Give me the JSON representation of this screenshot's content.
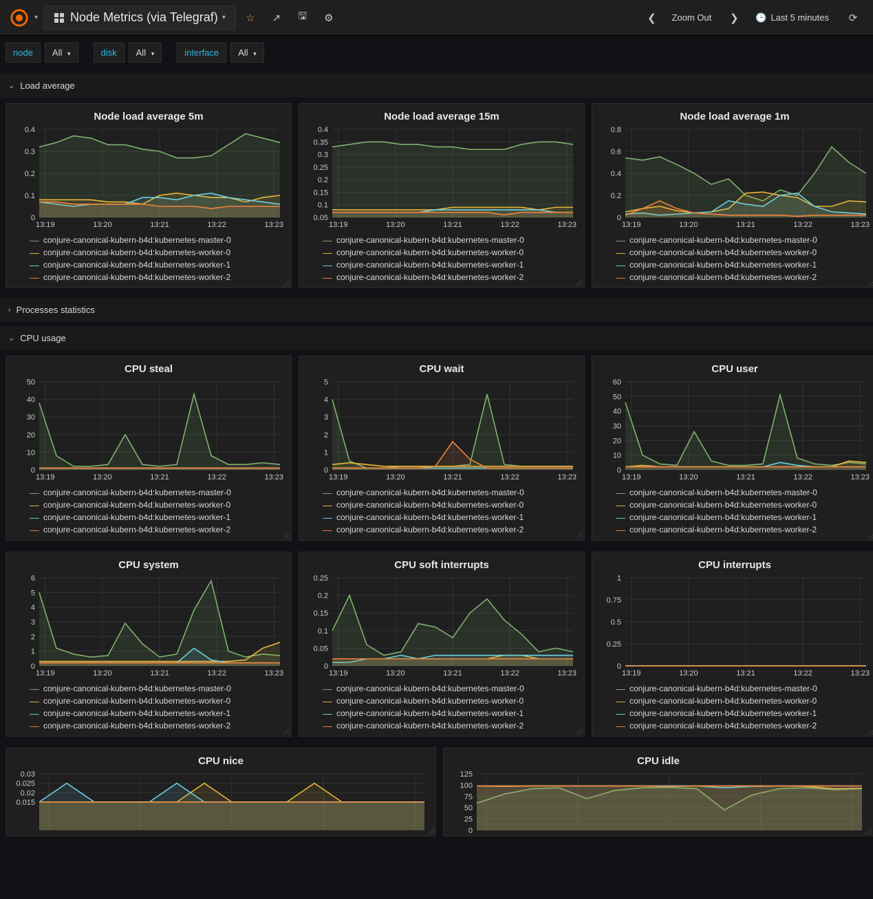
{
  "header": {
    "title": "Node Metrics (via Telegraf)",
    "zoom_label": "Zoom Out",
    "time_range": "Last 5 minutes"
  },
  "filters": [
    {
      "label": "node",
      "blue": true
    },
    {
      "label": "All",
      "caret": true
    },
    {
      "label": "disk",
      "blue": true,
      "gap_before": true
    },
    {
      "label": "All",
      "caret": true
    },
    {
      "label": "interface",
      "blue": true,
      "gap_before": true
    },
    {
      "label": "All",
      "caret": true
    }
  ],
  "colors": {
    "master0": "#7eb26d",
    "worker0": "#eab839",
    "worker1": "#6ed0e0",
    "worker2": "#ef843c",
    "grid": "#333333",
    "text": "#c8c8c8",
    "bg": "#1f1f20"
  },
  "legend_labels": [
    {
      "key": "master0",
      "text": "conjure-canonical-kubern-b4d:kubernetes-master-0"
    },
    {
      "key": "worker0",
      "text": "conjure-canonical-kubern-b4d:kubernetes-worker-0"
    },
    {
      "key": "worker1",
      "text": "conjure-canonical-kubern-b4d:kubernetes-worker-1"
    },
    {
      "key": "worker2",
      "text": "conjure-canonical-kubern-b4d:kubernetes-worker-2"
    }
  ],
  "x_ticks": [
    "13:19",
    "13:20",
    "13:21",
    "13:22",
    "13:23"
  ],
  "sections": [
    {
      "id": "load",
      "title": "Load average",
      "open": true
    },
    {
      "id": "proc",
      "title": "Processes statistics",
      "open": false
    },
    {
      "id": "cpu",
      "title": "CPU usage",
      "open": true
    }
  ],
  "panels": {
    "load5m": {
      "title": "Node load average 5m",
      "ylim": [
        0,
        0.4
      ],
      "yticks": [
        0,
        0.1,
        0.2,
        0.3,
        0.4
      ],
      "fill": true,
      "series": {
        "master0": [
          0.32,
          0.34,
          0.37,
          0.36,
          0.33,
          0.33,
          0.31,
          0.3,
          0.27,
          0.27,
          0.28,
          0.33,
          0.38,
          0.36,
          0.34
        ],
        "worker0": [
          0.08,
          0.08,
          0.08,
          0.08,
          0.07,
          0.07,
          0.06,
          0.1,
          0.11,
          0.1,
          0.09,
          0.09,
          0.07,
          0.09,
          0.1
        ],
        "worker1": [
          0.07,
          0.06,
          0.05,
          0.06,
          0.06,
          0.06,
          0.09,
          0.09,
          0.08,
          0.1,
          0.11,
          0.09,
          0.08,
          0.07,
          0.06
        ],
        "worker2": [
          0.07,
          0.07,
          0.06,
          0.06,
          0.06,
          0.06,
          0.06,
          0.05,
          0.05,
          0.05,
          0.04,
          0.05,
          0.05,
          0.05,
          0.05
        ]
      }
    },
    "load15m": {
      "title": "Node load average 15m",
      "ylim": [
        0.05,
        0.4
      ],
      "yticks": [
        0.05,
        0.1,
        0.15,
        0.2,
        0.25,
        0.3,
        0.35,
        0.4
      ],
      "fill": true,
      "series": {
        "master0": [
          0.33,
          0.34,
          0.35,
          0.35,
          0.34,
          0.34,
          0.33,
          0.33,
          0.32,
          0.32,
          0.32,
          0.34,
          0.35,
          0.35,
          0.34
        ],
        "worker0": [
          0.08,
          0.08,
          0.08,
          0.08,
          0.08,
          0.08,
          0.08,
          0.09,
          0.09,
          0.09,
          0.09,
          0.09,
          0.08,
          0.09,
          0.09
        ],
        "worker1": [
          0.07,
          0.07,
          0.07,
          0.07,
          0.07,
          0.07,
          0.08,
          0.08,
          0.08,
          0.08,
          0.08,
          0.08,
          0.08,
          0.07,
          0.07
        ],
        "worker2": [
          0.07,
          0.07,
          0.07,
          0.07,
          0.07,
          0.07,
          0.07,
          0.07,
          0.07,
          0.07,
          0.06,
          0.07,
          0.07,
          0.07,
          0.07
        ]
      }
    },
    "load1m": {
      "title": "Node load average 1m",
      "ylim": [
        0,
        0.8
      ],
      "yticks": [
        0,
        0.2,
        0.4,
        0.6,
        0.8
      ],
      "fill": true,
      "series": {
        "master0": [
          0.54,
          0.52,
          0.55,
          0.48,
          0.4,
          0.3,
          0.35,
          0.2,
          0.15,
          0.25,
          0.2,
          0.4,
          0.64,
          0.5,
          0.4
        ],
        "worker0": [
          0.05,
          0.08,
          0.1,
          0.06,
          0.04,
          0.05,
          0.08,
          0.22,
          0.23,
          0.2,
          0.18,
          0.1,
          0.1,
          0.15,
          0.14
        ],
        "worker1": [
          0.03,
          0.04,
          0.02,
          0.03,
          0.04,
          0.05,
          0.15,
          0.12,
          0.1,
          0.2,
          0.22,
          0.1,
          0.05,
          0.04,
          0.03
        ],
        "worker2": [
          0.02,
          0.08,
          0.15,
          0.08,
          0.04,
          0.03,
          0.02,
          0.02,
          0.02,
          0.02,
          0.01,
          0.02,
          0.02,
          0.02,
          0.02
        ]
      }
    },
    "cpu_steal": {
      "title": "CPU steal",
      "ylim": [
        0,
        50
      ],
      "yticks": [
        0,
        10,
        20,
        30,
        40,
        50
      ],
      "fill": true,
      "series": {
        "master0": [
          38,
          8,
          2,
          2,
          3,
          20,
          3,
          2,
          3,
          43,
          8,
          3,
          3,
          4,
          3
        ],
        "worker0": [
          1,
          1,
          1,
          1,
          1,
          1,
          1,
          1,
          1,
          1,
          1,
          1,
          1,
          1,
          1
        ],
        "worker1": [
          1,
          1,
          1,
          1,
          1,
          1,
          1,
          1,
          1,
          1,
          1,
          1,
          1,
          1,
          1
        ],
        "worker2": [
          1,
          1,
          1,
          1,
          1,
          1,
          1,
          1,
          1,
          1,
          1,
          1,
          1,
          1,
          1
        ]
      }
    },
    "cpu_wait": {
      "title": "CPU wait",
      "ylim": [
        0,
        5
      ],
      "yticks": [
        0,
        1,
        2,
        3,
        4,
        5
      ],
      "fill": true,
      "series": {
        "master0": [
          4.0,
          0.5,
          0.1,
          0.1,
          0.2,
          0.2,
          0.2,
          0.2,
          0.3,
          4.3,
          0.3,
          0.2,
          0.2,
          0.2,
          0.2
        ],
        "worker0": [
          0.3,
          0.4,
          0.3,
          0.2,
          0.2,
          0.2,
          0.2,
          0.2,
          0.2,
          0.2,
          0.2,
          0.2,
          0.2,
          0.2,
          0.2
        ],
        "worker1": [
          0.1,
          0.1,
          0.1,
          0.1,
          0.1,
          0.1,
          0.1,
          0.1,
          0.1,
          0.1,
          0.1,
          0.1,
          0.1,
          0.1,
          0.1
        ],
        "worker2": [
          0.1,
          0.1,
          0.1,
          0.1,
          0.1,
          0.1,
          0.2,
          1.6,
          0.6,
          0.1,
          0.1,
          0.1,
          0.1,
          0.1,
          0.1
        ]
      }
    },
    "cpu_user": {
      "title": "CPU user",
      "ylim": [
        0,
        60
      ],
      "yticks": [
        0,
        10,
        20,
        30,
        40,
        50,
        60
      ],
      "fill": true,
      "series": {
        "master0": [
          46,
          10,
          4,
          3,
          26,
          6,
          3,
          3,
          4,
          51,
          8,
          4,
          3,
          5,
          4
        ],
        "worker0": [
          2,
          3,
          2,
          2,
          2,
          2,
          2,
          2,
          2,
          2,
          2,
          2,
          2,
          6,
          5
        ],
        "worker1": [
          2,
          2,
          2,
          2,
          2,
          2,
          2,
          2,
          2,
          5,
          3,
          2,
          2,
          2,
          2
        ],
        "worker2": [
          2,
          2,
          2,
          2,
          2,
          2,
          2,
          2,
          2,
          2,
          2,
          2,
          2,
          2,
          2
        ]
      }
    },
    "cpu_system": {
      "title": "CPU system",
      "ylim": [
        0,
        6
      ],
      "yticks": [
        0,
        1,
        2,
        3,
        4,
        5,
        6
      ],
      "fill": true,
      "series": {
        "master0": [
          5.0,
          1.2,
          0.8,
          0.6,
          0.7,
          2.9,
          1.5,
          0.6,
          0.8,
          3.8,
          5.8,
          1.0,
          0.6,
          0.8,
          0.7
        ],
        "worker0": [
          0.3,
          0.3,
          0.3,
          0.3,
          0.3,
          0.3,
          0.3,
          0.3,
          0.3,
          0.3,
          0.3,
          0.3,
          0.4,
          1.2,
          1.6
        ],
        "worker1": [
          0.2,
          0.2,
          0.2,
          0.2,
          0.2,
          0.2,
          0.2,
          0.2,
          0.2,
          1.2,
          0.4,
          0.2,
          0.2,
          0.2,
          0.2
        ],
        "worker2": [
          0.2,
          0.2,
          0.2,
          0.2,
          0.2,
          0.2,
          0.2,
          0.2,
          0.2,
          0.2,
          0.2,
          0.2,
          0.2,
          0.2,
          0.2
        ]
      }
    },
    "cpu_softirq": {
      "title": "CPU soft interrupts",
      "ylim": [
        0,
        0.25
      ],
      "yticks": [
        0,
        0.05,
        0.1,
        0.15,
        0.2,
        0.25
      ],
      "fill": true,
      "series": {
        "master0": [
          0.1,
          0.2,
          0.06,
          0.03,
          0.04,
          0.12,
          0.11,
          0.08,
          0.15,
          0.19,
          0.13,
          0.09,
          0.04,
          0.05,
          0.04
        ],
        "worker0": [
          0.02,
          0.02,
          0.02,
          0.02,
          0.02,
          0.02,
          0.02,
          0.02,
          0.02,
          0.02,
          0.03,
          0.03,
          0.02,
          0.02,
          0.02
        ],
        "worker1": [
          0.01,
          0.01,
          0.02,
          0.02,
          0.03,
          0.02,
          0.03,
          0.03,
          0.03,
          0.03,
          0.03,
          0.03,
          0.03,
          0.03,
          0.03
        ],
        "worker2": [
          0.02,
          0.02,
          0.02,
          0.02,
          0.02,
          0.02,
          0.02,
          0.02,
          0.02,
          0.02,
          0.02,
          0.02,
          0.02,
          0.02,
          0.02
        ]
      }
    },
    "cpu_irq": {
      "title": "CPU interrupts",
      "ylim": [
        0,
        1.0
      ],
      "yticks": [
        0,
        0.25,
        0.5,
        0.75,
        1.0
      ],
      "fill": true,
      "series": {
        "master0": [
          0,
          0,
          0,
          0,
          0,
          0,
          0,
          0,
          0,
          0,
          0,
          0,
          0,
          0,
          0
        ],
        "worker0": [
          0,
          0,
          0,
          0,
          0,
          0,
          0,
          0,
          0,
          0,
          0,
          0,
          0,
          0,
          0
        ],
        "worker1": [
          0,
          0,
          0,
          0,
          0,
          0,
          0,
          0,
          0,
          0,
          0,
          0,
          0,
          0,
          0
        ],
        "worker2": [
          0,
          0,
          0,
          0,
          0,
          0,
          0,
          0,
          0,
          0,
          0,
          0,
          0,
          0,
          0
        ]
      }
    },
    "cpu_nice": {
      "title": "CPU nice",
      "ylim": [
        0,
        0.03
      ],
      "yticks": [
        0.015,
        0.02,
        0.025,
        0.03
      ],
      "fill": true,
      "partial": true,
      "series": {
        "master0": [
          0.015,
          0.015,
          0.015,
          0.015,
          0.015,
          0.015,
          0.015,
          0.015,
          0.015,
          0.015,
          0.015,
          0.015,
          0.015,
          0.015,
          0.015
        ],
        "worker0": [
          0.015,
          0.015,
          0.015,
          0.015,
          0.015,
          0.015,
          0.025,
          0.015,
          0.015,
          0.015,
          0.025,
          0.015,
          0.015,
          0.015,
          0.015
        ],
        "worker1": [
          0.015,
          0.025,
          0.015,
          0.015,
          0.015,
          0.025,
          0.015,
          0.015,
          0.015,
          0.015,
          0.015,
          0.015,
          0.015,
          0.015,
          0.015
        ],
        "worker2": [
          0.015,
          0.015,
          0.015,
          0.015,
          0.015,
          0.015,
          0.015,
          0.015,
          0.015,
          0.015,
          0.015,
          0.015,
          0.015,
          0.015,
          0.015
        ]
      }
    },
    "cpu_idle": {
      "title": "CPU idle",
      "ylim": [
        0,
        125
      ],
      "yticks": [
        0,
        25,
        50,
        75,
        100,
        125
      ],
      "fill": true,
      "partial": true,
      "wide": true,
      "series": {
        "master0": [
          60,
          80,
          92,
          94,
          70,
          88,
          94,
          95,
          92,
          45,
          78,
          92,
          94,
          90,
          92
        ],
        "worker0": [
          98,
          97,
          98,
          98,
          98,
          98,
          98,
          98,
          98,
          98,
          98,
          98,
          97,
          92,
          93
        ],
        "worker1": [
          98,
          98,
          98,
          98,
          98,
          98,
          98,
          98,
          98,
          94,
          97,
          98,
          98,
          98,
          98
        ],
        "worker2": [
          98,
          98,
          98,
          98,
          98,
          98,
          98,
          97,
          98,
          98,
          98,
          98,
          98,
          98,
          98
        ]
      }
    }
  }
}
